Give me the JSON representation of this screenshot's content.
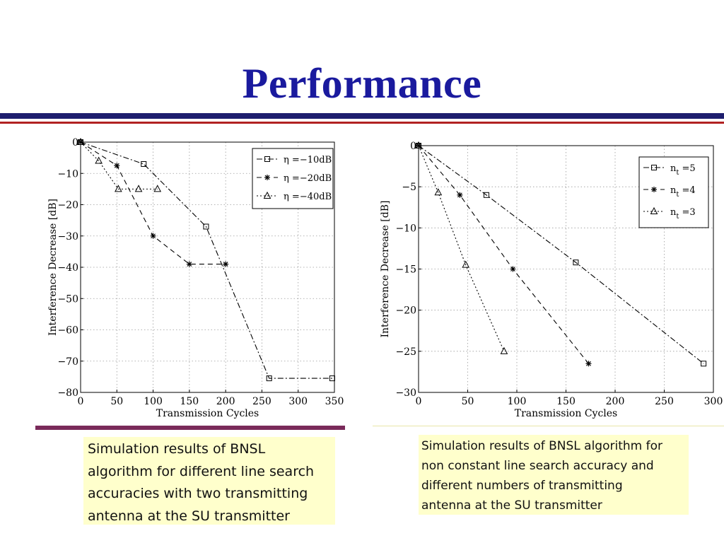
{
  "slide": {
    "title": "Performance",
    "captions": {
      "left": "Simulation results of  BNSL\nalgorithm for different line search\naccuracies with two transmitting\nantenna at the SU transmitter",
      "right": "Simulation results of  BNSL algorithm for\nnon constant   line search accuracy and\ndifferent numbers of transmitting\nantenna at the SU transmitter"
    },
    "colors": {
      "title": "#1a1a9e",
      "rule_navy": "#1e1e6e",
      "rule_red": "#b22222",
      "left_underline": "#7a2a5a",
      "caption_bg": "#ffffcc"
    }
  },
  "chart_data": [
    {
      "type": "line",
      "title": "",
      "xlabel": "Transmission Cycles",
      "ylabel": "Interference Decrease [dB]",
      "xlim": [
        0,
        350
      ],
      "ylim": [
        -80,
        0
      ],
      "xticks": [
        0,
        50,
        100,
        150,
        200,
        250,
        300,
        350
      ],
      "yticks": [
        0,
        -10,
        -20,
        -30,
        -40,
        -50,
        -60,
        -70,
        -80
      ],
      "xtick_labels": [
        "0",
        "50",
        "100",
        "150",
        "200",
        "250",
        "300",
        "350"
      ],
      "ytick_labels": [
        "0",
        "−10",
        "−20",
        "−30",
        "−40",
        "−50",
        "−60",
        "−70",
        "−80"
      ],
      "grid": true,
      "legend_position": "top-right",
      "series": [
        {
          "name": "η =−10dB",
          "marker": "square",
          "dash": "dashdot",
          "x": [
            0,
            87,
            173,
            260,
            347
          ],
          "y": [
            0,
            -7,
            -27,
            -75.5,
            -75.5
          ]
        },
        {
          "name": "η =−20dB",
          "marker": "star",
          "dash": "dashed",
          "x": [
            0,
            50,
            100,
            150,
            200
          ],
          "y": [
            0,
            -7.5,
            -30,
            -39,
            -39
          ]
        },
        {
          "name": "η =−40dB",
          "marker": "triangle",
          "dash": "dotted",
          "x": [
            0,
            25,
            52,
            80,
            106
          ],
          "y": [
            0,
            -6,
            -15,
            -15,
            -15
          ]
        }
      ]
    },
    {
      "type": "line",
      "title": "",
      "xlabel": "Transmission Cycles",
      "ylabel": "Interference Decrease [dB]",
      "xlim": [
        0,
        300
      ],
      "ylim": [
        -30,
        0
      ],
      "xticks": [
        0,
        50,
        100,
        150,
        200,
        250,
        300
      ],
      "yticks": [
        0,
        -5,
        -10,
        -15,
        -20,
        -25,
        -30
      ],
      "xtick_labels": [
        "0",
        "50",
        "100",
        "150",
        "200",
        "250",
        "300"
      ],
      "ytick_labels": [
        "0",
        "−5",
        "−10",
        "−15",
        "−20",
        "−25",
        "−30"
      ],
      "grid": true,
      "legend_position": "top-right",
      "series": [
        {
          "name": "n",
          "name_sub": "t",
          "name_suffix": " =5",
          "marker": "square",
          "dash": "dashdot",
          "x": [
            0,
            69,
            160,
            290
          ],
          "y": [
            0,
            -6,
            -14.2,
            -26.5
          ]
        },
        {
          "name": "n",
          "name_sub": "t",
          "name_suffix": " =4",
          "marker": "star",
          "dash": "dashed",
          "x": [
            0,
            42,
            96,
            173
          ],
          "y": [
            0,
            -6,
            -15,
            -26.5
          ]
        },
        {
          "name": "n",
          "name_sub": "t",
          "name_suffix": " =3",
          "marker": "triangle",
          "dash": "dotted",
          "x": [
            0,
            20,
            48,
            87
          ],
          "y": [
            0,
            -5.7,
            -14.5,
            -25
          ]
        }
      ]
    }
  ]
}
